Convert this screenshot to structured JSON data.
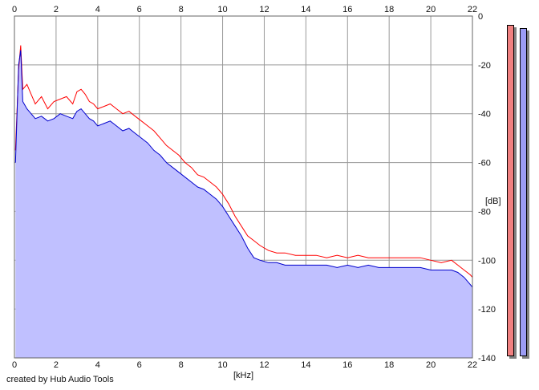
{
  "chart_data": {
    "type": "area",
    "xlabel": "[kHz]",
    "ylabel": "[dB]",
    "xlim": [
      0,
      22
    ],
    "ylim": [
      -140,
      0
    ],
    "x_ticks": [
      0,
      2,
      4,
      6,
      8,
      10,
      12,
      14,
      16,
      18,
      20,
      22
    ],
    "y_ticks": [
      0,
      -20,
      -40,
      -60,
      -80,
      -100,
      -120,
      -140
    ],
    "grid": true,
    "series": [
      {
        "color": "#ff0000",
        "x": [
          0.05,
          0.2,
          0.3,
          0.4,
          0.6,
          0.8,
          1.0,
          1.3,
          1.6,
          1.9,
          2.2,
          2.5,
          2.8,
          3.0,
          3.2,
          3.4,
          3.6,
          3.8,
          4.0,
          4.3,
          4.6,
          4.9,
          5.2,
          5.5,
          5.8,
          6.1,
          6.4,
          6.7,
          7.0,
          7.3,
          7.6,
          7.9,
          8.2,
          8.5,
          8.8,
          9.1,
          9.4,
          9.7,
          10.0,
          10.3,
          10.6,
          10.9,
          11.2,
          11.5,
          11.8,
          12.2,
          12.6,
          13.0,
          13.5,
          14.0,
          14.5,
          15.0,
          15.5,
          16.0,
          16.5,
          17.0,
          17.5,
          18.0,
          18.5,
          19.0,
          19.5,
          20.0,
          20.5,
          21.0,
          21.3,
          21.6,
          21.9,
          22.0
        ],
        "values": [
          -55,
          -22,
          -12,
          -30,
          -28,
          -32,
          -36,
          -33,
          -38,
          -35,
          -34,
          -33,
          -36,
          -31,
          -30,
          -32,
          -35,
          -36,
          -38,
          -37,
          -36,
          -38,
          -40,
          -39,
          -41,
          -43,
          -45,
          -47,
          -50,
          -53,
          -55,
          -57,
          -60,
          -62,
          -65,
          -66,
          -68,
          -70,
          -73,
          -77,
          -82,
          -86,
          -90,
          -92,
          -94,
          -96,
          -97,
          -97,
          -98,
          -98,
          -98,
          -99,
          -98,
          -99,
          -98,
          -99,
          -99,
          -99,
          -99,
          -99,
          -99,
          -100,
          -101,
          -100,
          -102,
          -104,
          -106,
          -107
        ]
      },
      {
        "color": "#0000cc",
        "x": [
          0.05,
          0.2,
          0.3,
          0.4,
          0.6,
          0.8,
          1.0,
          1.3,
          1.6,
          1.9,
          2.2,
          2.5,
          2.8,
          3.0,
          3.2,
          3.4,
          3.6,
          3.8,
          4.0,
          4.3,
          4.6,
          4.9,
          5.2,
          5.5,
          5.8,
          6.1,
          6.4,
          6.7,
          7.0,
          7.3,
          7.6,
          7.9,
          8.2,
          8.5,
          8.8,
          9.1,
          9.4,
          9.7,
          10.0,
          10.3,
          10.6,
          10.9,
          11.2,
          11.5,
          11.8,
          12.2,
          12.6,
          13.0,
          13.5,
          14.0,
          14.5,
          15.0,
          15.5,
          16.0,
          16.5,
          17.0,
          17.5,
          18.0,
          18.5,
          19.0,
          19.5,
          20.0,
          20.5,
          21.0,
          21.3,
          21.6,
          21.9,
          22.0
        ],
        "values": [
          -60,
          -20,
          -14,
          -35,
          -38,
          -40,
          -42,
          -41,
          -43,
          -42,
          -40,
          -41,
          -42,
          -39,
          -38,
          -40,
          -42,
          -43,
          -45,
          -44,
          -43,
          -45,
          -47,
          -46,
          -48,
          -50,
          -52,
          -55,
          -57,
          -60,
          -62,
          -64,
          -66,
          -68,
          -70,
          -71,
          -73,
          -75,
          -78,
          -82,
          -86,
          -90,
          -95,
          -99,
          -100,
          -101,
          -101,
          -102,
          -102,
          -102,
          -102,
          -102,
          -103,
          -102,
          -103,
          -102,
          -103,
          -103,
          -103,
          -103,
          -103,
          -104,
          -104,
          -104,
          -105,
          -107,
          -110,
          -111
        ]
      }
    ],
    "fill_color": "#c0c0ff",
    "credit": "created by Hub Audio Tools",
    "level_meters": [
      {
        "channel": "left",
        "color": "#f08080",
        "level_db": 0
      },
      {
        "channel": "right",
        "color": "#9c9cf5",
        "level_db": 0
      }
    ]
  }
}
